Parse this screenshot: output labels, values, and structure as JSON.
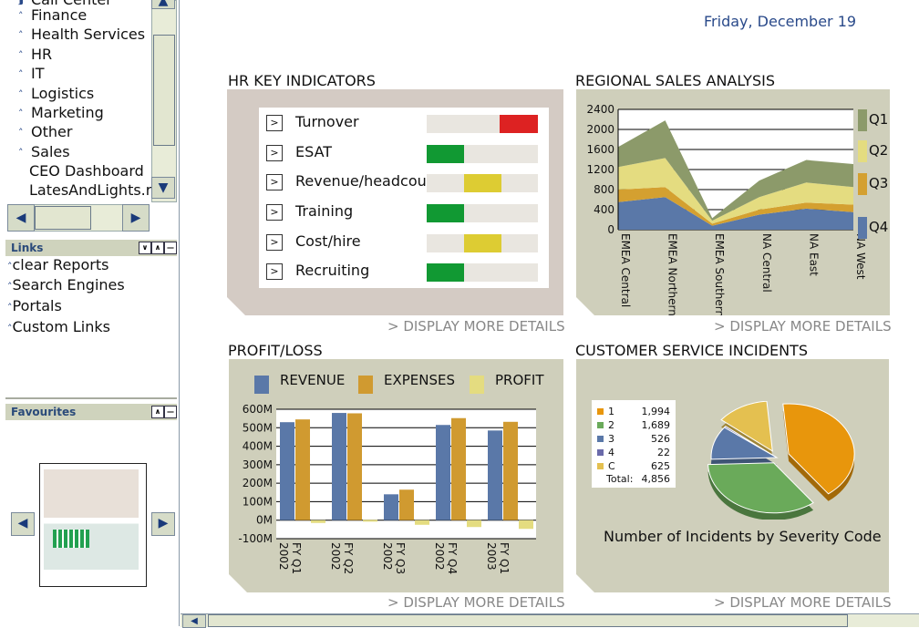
{
  "date": "Friday, December 19",
  "tree": {
    "items": [
      {
        "label": "Call Center",
        "chev": true
      },
      {
        "label": "Finance",
        "chev": true
      },
      {
        "label": "Health Services",
        "chev": true
      },
      {
        "label": "HR",
        "chev": true
      },
      {
        "label": "IT",
        "chev": true
      },
      {
        "label": "Logistics",
        "chev": true
      },
      {
        "label": "Marketing",
        "chev": true
      },
      {
        "label": "Other",
        "chev": true
      },
      {
        "label": "Sales",
        "chev": true
      },
      {
        "label": "CEO Dashboard",
        "chev": false
      },
      {
        "label": "LatesAndLights.rp",
        "chev": false
      }
    ]
  },
  "links": {
    "title": "Links",
    "items": [
      "clear Reports",
      "Search Engines",
      "Portals",
      "Custom Links"
    ]
  },
  "favourites": {
    "title": "Favourites"
  },
  "hr": {
    "title": "HR KEY INDICATORS",
    "more": "> DISPLAY MORE DETAILS",
    "rows": [
      {
        "label": "Turnover",
        "level": "high",
        "color": "#dd2222"
      },
      {
        "label": "ESAT",
        "level": "low",
        "color": "#119933"
      },
      {
        "label": "Revenue/headcount",
        "level": "mid",
        "color": "#ddcc33"
      },
      {
        "label": "Training",
        "level": "low",
        "color": "#119933"
      },
      {
        "label": "Cost/hire",
        "level": "mid",
        "color": "#ddcc33"
      },
      {
        "label": "Recruiting",
        "level": "low",
        "color": "#119933"
      }
    ]
  },
  "sales": {
    "title": "REGIONAL SALES ANALYSIS",
    "more": "> DISPLAY MORE DETAILS"
  },
  "profit": {
    "title": "PROFIT/LOSS",
    "more": "> DISPLAY MORE DETAILS"
  },
  "incidents": {
    "title": "CUSTOMER SERVICE INCIDENTS",
    "more": "> DISPLAY MORE DETAILS",
    "caption": "Number of Incidents by Severity Code",
    "total_label": "Total:",
    "total_value": "4,856"
  },
  "chart_data": [
    {
      "type": "area",
      "stacked": true,
      "categories": [
        "EMEA Central",
        "EMEA Northern",
        "EMEA Southern",
        "NA Central",
        "NA East",
        "NA West"
      ],
      "ylim": [
        0,
        2400
      ],
      "yticks": [
        0,
        400,
        800,
        1200,
        1600,
        2000,
        2400
      ],
      "grid": true,
      "legend": "right",
      "series": [
        {
          "name": "Q4",
          "color": "#5a78a8",
          "values": [
            550,
            650,
            80,
            300,
            420,
            350
          ]
        },
        {
          "name": "Q3",
          "color": "#d4a030",
          "values": [
            250,
            200,
            40,
            100,
            120,
            150
          ]
        },
        {
          "name": "Q2",
          "color": "#e4dc80",
          "values": [
            450,
            580,
            60,
            250,
            400,
            350
          ]
        },
        {
          "name": "Q1",
          "color": "#8c9a6a",
          "values": [
            400,
            750,
            50,
            330,
            450,
            460
          ]
        }
      ]
    },
    {
      "type": "bar",
      "categories": [
        "FY Q1 2002",
        "FY Q2 2002",
        "FY Q3 2002",
        "FY Q4 2002",
        "FY Q1 2003"
      ],
      "category_lines": [
        [
          "FY Q1",
          "2002"
        ],
        [
          "FY Q2",
          "2002"
        ],
        [
          "FY Q3",
          "2002"
        ],
        [
          "FY Q4",
          "2002"
        ],
        [
          "FY Q1",
          "2003"
        ]
      ],
      "ylim": [
        -100,
        600
      ],
      "yticks": [
        "-100M",
        "0M",
        "100M",
        "200M",
        "300M",
        "400M",
        "500M",
        "600M"
      ],
      "ytick_values": [
        -100,
        0,
        100,
        200,
        300,
        400,
        500,
        600
      ],
      "grid": true,
      "legend": "top",
      "series": [
        {
          "name": "REVENUE",
          "color": "#5a78a8",
          "values": [
            530,
            580,
            140,
            515,
            485
          ]
        },
        {
          "name": "EXPENSES",
          "color": "#d09a30",
          "values": [
            545,
            578,
            165,
            552,
            532
          ]
        },
        {
          "name": "PROFIT",
          "color": "#e4dc80",
          "values": [
            -15,
            2,
            -25,
            -37,
            -47
          ]
        }
      ]
    },
    {
      "type": "pie",
      "title": "Number of Incidents by Severity Code",
      "legend": "left",
      "slices": [
        {
          "label": "1",
          "value": 1994,
          "display": "1,994",
          "color": "#e8960c"
        },
        {
          "label": "2",
          "value": 1689,
          "display": "1,689",
          "color": "#6aaa5a"
        },
        {
          "label": "3",
          "value": 526,
          "display": "526",
          "color": "#5a78a8"
        },
        {
          "label": "4",
          "value": 22,
          "display": "22",
          "color": "#6a6aaa"
        },
        {
          "label": "C",
          "value": 625,
          "display": "625",
          "color": "#e4c050"
        }
      ],
      "total": 4856
    }
  ]
}
